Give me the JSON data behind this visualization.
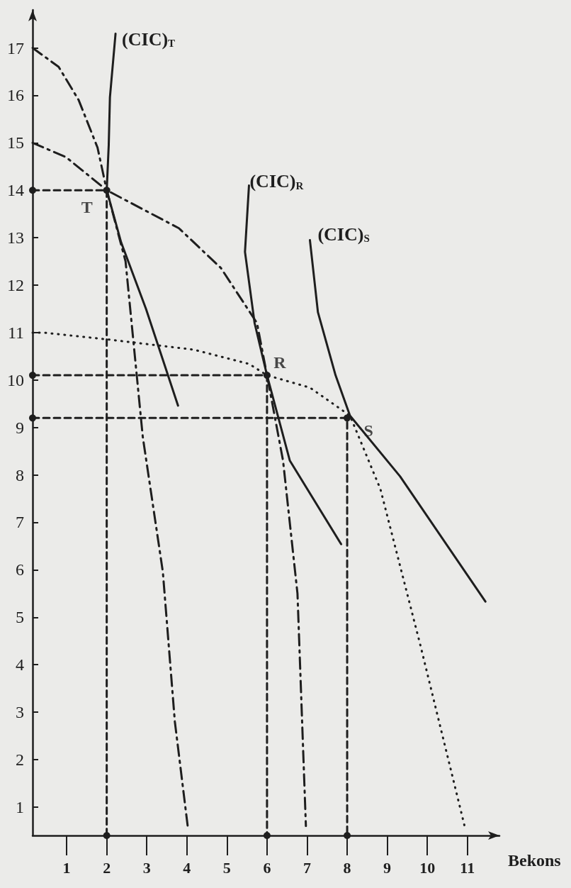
{
  "chart_data": {
    "type": "line",
    "xlabel": "Bekons",
    "xlim": [
      0.15,
      11.8
    ],
    "ylim": [
      0.4,
      17.8
    ],
    "xticks": [
      1,
      2,
      3,
      4,
      5,
      6,
      7,
      8,
      9,
      10,
      11
    ],
    "yticks": [
      1,
      2,
      3,
      4,
      5,
      6,
      7,
      8,
      9,
      10,
      11,
      12,
      13,
      14,
      15,
      16,
      17
    ],
    "grid": false,
    "legend": false,
    "series": [
      {
        "color": "#1e1e1e",
        "line_style": "dashdot",
        "marker": "none",
        "x": [
          0.15,
          0.8,
          1.3,
          1.77,
          2,
          2.47,
          2.9,
          3.4,
          3.7,
          4.02
        ],
        "values": [
          17,
          16.6,
          15.9,
          14.9,
          14,
          12.5,
          8.8,
          5.96,
          2.8,
          0.6
        ]
      },
      {
        "color": "#1e1e1e",
        "line_style": "dashdot",
        "marker": "none",
        "x": [
          0.15,
          0.98,
          2,
          3.8,
          4.85,
          5.75,
          6,
          6.4,
          6.76,
          6.97
        ],
        "values": [
          15,
          14.7,
          14,
          13.2,
          12.36,
          11.2,
          10.1,
          8.3,
          5.5,
          0.6
        ]
      },
      {
        "color": "#1e1e1e",
        "line_style": "dotted",
        "marker": "none",
        "x": [
          0.15,
          0.42,
          2.08,
          4.17,
          5.55,
          6,
          7.07,
          8.07,
          8.83,
          9.83,
          10.93
        ],
        "values": [
          11,
          11,
          10.85,
          10.64,
          10.34,
          10.1,
          9.84,
          9.25,
          7.7,
          4.4,
          0.6
        ]
      },
      {
        "name": "(CIC)$_{T}$",
        "color": "#1e1e1e",
        "line_style": "solid",
        "marker": "none",
        "x": [
          2.22,
          2.08,
          2.05,
          2,
          2.36,
          2.98,
          3.78
        ],
        "values": [
          17.3,
          15.96,
          14.95,
          14,
          12.9,
          11.5,
          9.46
        ]
      },
      {
        "name": "(CIC)$_{R}$",
        "color": "#1e1e1e",
        "line_style": "solid",
        "marker": "none",
        "x": [
          5.55,
          5.45,
          5.69,
          6,
          6.57,
          7.85
        ],
        "values": [
          14.1,
          12.7,
          11.2,
          10.1,
          8.3,
          6.54
        ]
      },
      {
        "name": "(CIC)$_{S}$",
        "color": "#1e1e1e",
        "line_style": "solid",
        "marker": "none",
        "x": [
          7.07,
          7.27,
          7.71,
          8.07,
          9.32,
          11.45
        ],
        "values": [
          12.95,
          11.43,
          10.1,
          9.25,
          7.97,
          5.33
        ]
      },
      {
        "color": "#1e1e1e",
        "line_style": "dashed",
        "marker": "circle",
        "x": [
          0.15,
          2,
          2
        ],
        "values": [
          14,
          14,
          0.4
        ]
      },
      {
        "color": "#1e1e1e",
        "line_style": "dashed",
        "marker": "circle",
        "x": [
          0.15,
          6,
          6
        ],
        "values": [
          10.1,
          10.1,
          0.4
        ]
      },
      {
        "color": "#1e1e1e",
        "line_style": "dashed",
        "marker": "circle",
        "x": [
          0.15,
          8,
          8
        ],
        "values": [
          9.2,
          9.2,
          0.4
        ]
      }
    ],
    "annotations": [
      {
        "text": "T",
        "x": 2,
        "y": 14
      },
      {
        "text": "R",
        "x": 6,
        "y": 10.1
      },
      {
        "text": "S",
        "x": 8,
        "y": 9.2
      }
    ]
  }
}
